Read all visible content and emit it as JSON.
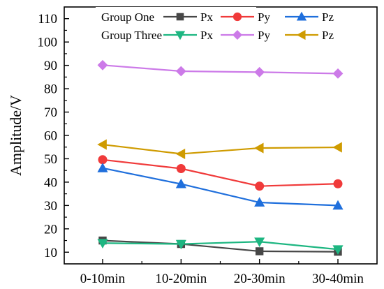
{
  "chart_data": {
    "type": "line",
    "categories": [
      "0-10min",
      "10-20min",
      "20-30min",
      "30-40min"
    ],
    "ylabel": "Amplitude/V",
    "xlabel": "",
    "ylim": [
      5,
      115
    ],
    "yticks": [
      10,
      20,
      30,
      40,
      50,
      60,
      70,
      80,
      90,
      100,
      110
    ],
    "legend_position": "top",
    "legend_groups": [
      "Group   One",
      "Group  Three"
    ],
    "series": [
      {
        "group": 0,
        "name": "Px",
        "color": "#474747",
        "marker": "square",
        "values": [
          15.0,
          13.5,
          10.4,
          10.2
        ]
      },
      {
        "group": 0,
        "name": "Py",
        "color": "#f03a3a",
        "marker": "circle",
        "values": [
          49.6,
          45.8,
          38.3,
          39.3
        ]
      },
      {
        "group": 0,
        "name": "Pz",
        "color": "#1f6fdc",
        "marker": "triangle-up",
        "values": [
          46.0,
          39.2,
          31.3,
          30.0
        ]
      },
      {
        "group": 1,
        "name": "Px",
        "color": "#1db681",
        "marker": "triangle-down",
        "values": [
          13.9,
          13.5,
          14.5,
          11.2
        ]
      },
      {
        "group": 1,
        "name": "Py",
        "color": "#cc7ae8",
        "marker": "diamond",
        "values": [
          90.1,
          87.5,
          87.1,
          86.5
        ]
      },
      {
        "group": 1,
        "name": "Pz",
        "color": "#cf9b00",
        "marker": "triangle-left",
        "values": [
          56.1,
          52.1,
          54.6,
          54.9
        ]
      }
    ]
  }
}
